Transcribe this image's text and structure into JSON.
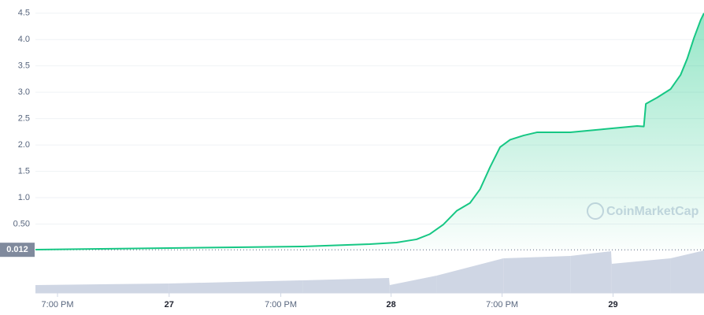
{
  "chart_data": {
    "type": "line",
    "watermark": "CoinMarketCap",
    "xlim": [
      0,
      100
    ],
    "xticks": [
      {
        "value": 3.3,
        "label": "7:00 PM"
      },
      {
        "value": 20,
        "label": "27"
      },
      {
        "value": 36.7,
        "label": "7:00 PM"
      },
      {
        "value": 53.2,
        "label": "28"
      },
      {
        "value": 69.8,
        "label": "7:00 PM"
      },
      {
        "value": 86.4,
        "label": "29"
      }
    ],
    "ylim": [
      0,
      4.75
    ],
    "yticks": [
      {
        "value": 0.5,
        "label": "0.50"
      },
      {
        "value": 1,
        "label": "1.0"
      },
      1.5,
      {
        "value": 2,
        "label": "2.0"
      },
      2.5,
      {
        "value": 3,
        "label": "3.0"
      },
      3.5,
      {
        "value": 4,
        "label": "4.0"
      },
      4.5
    ],
    "grid": true,
    "reference": {
      "value": 0.012,
      "label": "0.012"
    },
    "series": [
      {
        "color": "#16c784",
        "x": [
          0,
          10,
          20,
          30,
          40,
          50,
          54,
          57,
          59,
          61,
          63,
          65,
          66.5,
          68,
          69.5,
          71,
          73,
          75,
          80,
          85,
          90,
          91,
          91.3,
          93,
          95,
          96.5,
          97.5,
          98.5,
          99.5,
          100
        ],
        "values": [
          0.015,
          0.03,
          0.045,
          0.06,
          0.075,
          0.12,
          0.15,
          0.21,
          0.31,
          0.49,
          0.75,
          0.9,
          1.16,
          1.58,
          1.96,
          2.1,
          2.18,
          2.24,
          2.24,
          2.3,
          2.36,
          2.35,
          2.78,
          2.9,
          3.06,
          3.33,
          3.64,
          4.03,
          4.37,
          4.5
        ]
      }
    ],
    "volume": {
      "color": "#cfd6e4",
      "vlim": [
        0,
        54
      ],
      "x": [
        0,
        20,
        40,
        52.9,
        53,
        60,
        70,
        80,
        86.1,
        86.2,
        95,
        100
      ],
      "values": [
        10,
        12,
        16,
        19,
        10,
        22,
        44,
        47,
        53,
        37,
        44,
        54
      ]
    }
  }
}
